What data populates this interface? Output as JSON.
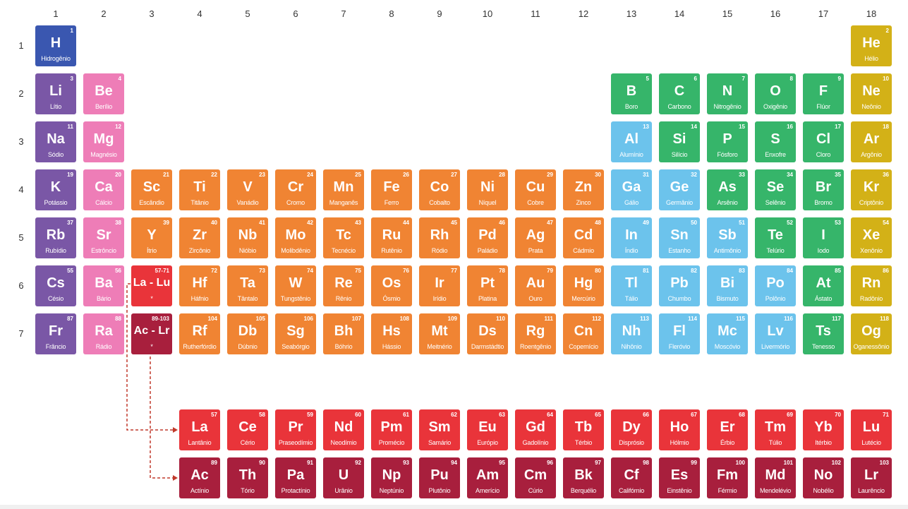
{
  "colors": {
    "hydrogen": "#3a57b0",
    "alkali": "#7a57a6",
    "alkaline": "#ee7db7",
    "transition": "#f08433",
    "post_transition": "#6cc3ec",
    "nonmetal": "#36b56a",
    "noble": "#d3b117",
    "lanthanide": "#e9343a",
    "actinide": "#a81f3d",
    "arrow": "#c0392b"
  },
  "column_labels": [
    "1",
    "2",
    "3",
    "4",
    "5",
    "6",
    "7",
    "8",
    "9",
    "10",
    "11",
    "12",
    "13",
    "14",
    "15",
    "16",
    "17",
    "18"
  ],
  "row_labels": [
    "1",
    "2",
    "3",
    "4",
    "5",
    "6",
    "7"
  ],
  "elements": [
    {
      "n": "1",
      "s": "H",
      "name": "Hidrogênio",
      "cat": "hydrogen",
      "p": 1,
      "g": 1
    },
    {
      "n": "2",
      "s": "He",
      "name": "Hélio",
      "cat": "noble",
      "p": 1,
      "g": 18
    },
    {
      "n": "3",
      "s": "Li",
      "name": "Lítio",
      "cat": "alkali",
      "p": 2,
      "g": 1
    },
    {
      "n": "4",
      "s": "Be",
      "name": "Berílio",
      "cat": "alkaline",
      "p": 2,
      "g": 2
    },
    {
      "n": "5",
      "s": "B",
      "name": "Boro",
      "cat": "nonmetal",
      "p": 2,
      "g": 13
    },
    {
      "n": "6",
      "s": "C",
      "name": "Carbono",
      "cat": "nonmetal",
      "p": 2,
      "g": 14
    },
    {
      "n": "7",
      "s": "N",
      "name": "Nitrogênio",
      "cat": "nonmetal",
      "p": 2,
      "g": 15
    },
    {
      "n": "8",
      "s": "O",
      "name": "Oxigênio",
      "cat": "nonmetal",
      "p": 2,
      "g": 16
    },
    {
      "n": "9",
      "s": "F",
      "name": "Flúor",
      "cat": "nonmetal",
      "p": 2,
      "g": 17
    },
    {
      "n": "10",
      "s": "Ne",
      "name": "Neônio",
      "cat": "noble",
      "p": 2,
      "g": 18
    },
    {
      "n": "11",
      "s": "Na",
      "name": "Sódio",
      "cat": "alkali",
      "p": 3,
      "g": 1
    },
    {
      "n": "12",
      "s": "Mg",
      "name": "Magnésio",
      "cat": "alkaline",
      "p": 3,
      "g": 2
    },
    {
      "n": "13",
      "s": "Al",
      "name": "Alumínio",
      "cat": "post_transition",
      "p": 3,
      "g": 13
    },
    {
      "n": "14",
      "s": "Si",
      "name": "Silício",
      "cat": "nonmetal",
      "p": 3,
      "g": 14
    },
    {
      "n": "15",
      "s": "P",
      "name": "Fósforo",
      "cat": "nonmetal",
      "p": 3,
      "g": 15
    },
    {
      "n": "16",
      "s": "S",
      "name": "Enxofre",
      "cat": "nonmetal",
      "p": 3,
      "g": 16
    },
    {
      "n": "17",
      "s": "Cl",
      "name": "Cloro",
      "cat": "nonmetal",
      "p": 3,
      "g": 17
    },
    {
      "n": "18",
      "s": "Ar",
      "name": "Argônio",
      "cat": "noble",
      "p": 3,
      "g": 18
    },
    {
      "n": "19",
      "s": "K",
      "name": "Potássio",
      "cat": "alkali",
      "p": 4,
      "g": 1
    },
    {
      "n": "20",
      "s": "Ca",
      "name": "Cálcio",
      "cat": "alkaline",
      "p": 4,
      "g": 2
    },
    {
      "n": "21",
      "s": "Sc",
      "name": "Escândio",
      "cat": "transition",
      "p": 4,
      "g": 3
    },
    {
      "n": "22",
      "s": "Ti",
      "name": "Titânio",
      "cat": "transition",
      "p": 4,
      "g": 4
    },
    {
      "n": "23",
      "s": "V",
      "name": "Vanádio",
      "cat": "transition",
      "p": 4,
      "g": 5
    },
    {
      "n": "24",
      "s": "Cr",
      "name": "Cromo",
      "cat": "transition",
      "p": 4,
      "g": 6
    },
    {
      "n": "25",
      "s": "Mn",
      "name": "Manganês",
      "cat": "transition",
      "p": 4,
      "g": 7
    },
    {
      "n": "26",
      "s": "Fe",
      "name": "Ferro",
      "cat": "transition",
      "p": 4,
      "g": 8
    },
    {
      "n": "27",
      "s": "Co",
      "name": "Cobalto",
      "cat": "transition",
      "p": 4,
      "g": 9
    },
    {
      "n": "28",
      "s": "Ni",
      "name": "Níquel",
      "cat": "transition",
      "p": 4,
      "g": 10
    },
    {
      "n": "29",
      "s": "Cu",
      "name": "Cobre",
      "cat": "transition",
      "p": 4,
      "g": 11
    },
    {
      "n": "30",
      "s": "Zn",
      "name": "Zinco",
      "cat": "transition",
      "p": 4,
      "g": 12
    },
    {
      "n": "31",
      "s": "Ga",
      "name": "Gálio",
      "cat": "post_transition",
      "p": 4,
      "g": 13
    },
    {
      "n": "32",
      "s": "Ge",
      "name": "Germânio",
      "cat": "post_transition",
      "p": 4,
      "g": 14
    },
    {
      "n": "33",
      "s": "As",
      "name": "Arsênio",
      "cat": "nonmetal",
      "p": 4,
      "g": 15
    },
    {
      "n": "34",
      "s": "Se",
      "name": "Selênio",
      "cat": "nonmetal",
      "p": 4,
      "g": 16
    },
    {
      "n": "35",
      "s": "Br",
      "name": "Bromo",
      "cat": "nonmetal",
      "p": 4,
      "g": 17
    },
    {
      "n": "36",
      "s": "Kr",
      "name": "Criptônio",
      "cat": "noble",
      "p": 4,
      "g": 18
    },
    {
      "n": "37",
      "s": "Rb",
      "name": "Rubídio",
      "cat": "alkali",
      "p": 5,
      "g": 1
    },
    {
      "n": "38",
      "s": "Sr",
      "name": "Estrôncio",
      "cat": "alkaline",
      "p": 5,
      "g": 2
    },
    {
      "n": "39",
      "s": "Y",
      "name": "Ítrio",
      "cat": "transition",
      "p": 5,
      "g": 3
    },
    {
      "n": "40",
      "s": "Zr",
      "name": "Zircônio",
      "cat": "transition",
      "p": 5,
      "g": 4
    },
    {
      "n": "41",
      "s": "Nb",
      "name": "Nióbio",
      "cat": "transition",
      "p": 5,
      "g": 5
    },
    {
      "n": "42",
      "s": "Mo",
      "name": "Molibdênio",
      "cat": "transition",
      "p": 5,
      "g": 6
    },
    {
      "n": "43",
      "s": "Tc",
      "name": "Tecnécio",
      "cat": "transition",
      "p": 5,
      "g": 7
    },
    {
      "n": "44",
      "s": "Ru",
      "name": "Rutênio",
      "cat": "transition",
      "p": 5,
      "g": 8
    },
    {
      "n": "45",
      "s": "Rh",
      "name": "Ródio",
      "cat": "transition",
      "p": 5,
      "g": 9
    },
    {
      "n": "46",
      "s": "Pd",
      "name": "Paládio",
      "cat": "transition",
      "p": 5,
      "g": 10
    },
    {
      "n": "47",
      "s": "Ag",
      "name": "Prata",
      "cat": "transition",
      "p": 5,
      "g": 11
    },
    {
      "n": "48",
      "s": "Cd",
      "name": "Cádmio",
      "cat": "transition",
      "p": 5,
      "g": 12
    },
    {
      "n": "49",
      "s": "In",
      "name": "Índio",
      "cat": "post_transition",
      "p": 5,
      "g": 13
    },
    {
      "n": "50",
      "s": "Sn",
      "name": "Estanho",
      "cat": "post_transition",
      "p": 5,
      "g": 14
    },
    {
      "n": "51",
      "s": "Sb",
      "name": "Antimônio",
      "cat": "post_transition",
      "p": 5,
      "g": 15
    },
    {
      "n": "52",
      "s": "Te",
      "name": "Telúrio",
      "cat": "nonmetal",
      "p": 5,
      "g": 16
    },
    {
      "n": "53",
      "s": "I",
      "name": "Iodo",
      "cat": "nonmetal",
      "p": 5,
      "g": 17
    },
    {
      "n": "54",
      "s": "Xe",
      "name": "Xenônio",
      "cat": "noble",
      "p": 5,
      "g": 18
    },
    {
      "n": "55",
      "s": "Cs",
      "name": "Césio",
      "cat": "alkali",
      "p": 6,
      "g": 1
    },
    {
      "n": "56",
      "s": "Ba",
      "name": "Bário",
      "cat": "alkaline",
      "p": 6,
      "g": 2
    },
    {
      "n": "57-71",
      "s": "La - Lu",
      "name": "*",
      "cat": "lanthanide",
      "p": 6,
      "g": 3,
      "range": true
    },
    {
      "n": "72",
      "s": "Hf",
      "name": "Háfnio",
      "cat": "transition",
      "p": 6,
      "g": 4
    },
    {
      "n": "73",
      "s": "Ta",
      "name": "Tântalo",
      "cat": "transition",
      "p": 6,
      "g": 5
    },
    {
      "n": "74",
      "s": "W",
      "name": "Tungstênio",
      "cat": "transition",
      "p": 6,
      "g": 6
    },
    {
      "n": "75",
      "s": "Re",
      "name": "Rênio",
      "cat": "transition",
      "p": 6,
      "g": 7
    },
    {
      "n": "76",
      "s": "Os",
      "name": "Ósmio",
      "cat": "transition",
      "p": 6,
      "g": 8
    },
    {
      "n": "77",
      "s": "Ir",
      "name": "Irídio",
      "cat": "transition",
      "p": 6,
      "g": 9
    },
    {
      "n": "78",
      "s": "Pt",
      "name": "Platina",
      "cat": "transition",
      "p": 6,
      "g": 10
    },
    {
      "n": "79",
      "s": "Au",
      "name": "Ouro",
      "cat": "transition",
      "p": 6,
      "g": 11
    },
    {
      "n": "80",
      "s": "Hg",
      "name": "Mercúrio",
      "cat": "transition",
      "p": 6,
      "g": 12
    },
    {
      "n": "81",
      "s": "Tl",
      "name": "Tálio",
      "cat": "post_transition",
      "p": 6,
      "g": 13
    },
    {
      "n": "82",
      "s": "Pb",
      "name": "Chumbo",
      "cat": "post_transition",
      "p": 6,
      "g": 14
    },
    {
      "n": "83",
      "s": "Bi",
      "name": "Bismuto",
      "cat": "post_transition",
      "p": 6,
      "g": 15
    },
    {
      "n": "84",
      "s": "Po",
      "name": "Polônio",
      "cat": "post_transition",
      "p": 6,
      "g": 16
    },
    {
      "n": "85",
      "s": "At",
      "name": "Ástato",
      "cat": "nonmetal",
      "p": 6,
      "g": 17
    },
    {
      "n": "86",
      "s": "Rn",
      "name": "Radônio",
      "cat": "noble",
      "p": 6,
      "g": 18
    },
    {
      "n": "87",
      "s": "Fr",
      "name": "Frâncio",
      "cat": "alkali",
      "p": 7,
      "g": 1
    },
    {
      "n": "88",
      "s": "Ra",
      "name": "Rádio",
      "cat": "alkaline",
      "p": 7,
      "g": 2
    },
    {
      "n": "89-103",
      "s": "Ac - Lr",
      "name": "*",
      "cat": "actinide",
      "p": 7,
      "g": 3,
      "range": true
    },
    {
      "n": "104",
      "s": "Rf",
      "name": "Rutherfórdio",
      "cat": "transition",
      "p": 7,
      "g": 4
    },
    {
      "n": "105",
      "s": "Db",
      "name": "Dúbnio",
      "cat": "transition",
      "p": 7,
      "g": 5
    },
    {
      "n": "106",
      "s": "Sg",
      "name": "Seabórgio",
      "cat": "transition",
      "p": 7,
      "g": 6
    },
    {
      "n": "107",
      "s": "Bh",
      "name": "Bóhrio",
      "cat": "transition",
      "p": 7,
      "g": 7
    },
    {
      "n": "108",
      "s": "Hs",
      "name": "Hássio",
      "cat": "transition",
      "p": 7,
      "g": 8
    },
    {
      "n": "109",
      "s": "Mt",
      "name": "Meitnério",
      "cat": "transition",
      "p": 7,
      "g": 9
    },
    {
      "n": "110",
      "s": "Ds",
      "name": "Darmstádtio",
      "cat": "transition",
      "p": 7,
      "g": 10
    },
    {
      "n": "111",
      "s": "Rg",
      "name": "Roentgênio",
      "cat": "transition",
      "p": 7,
      "g": 11
    },
    {
      "n": "112",
      "s": "Cn",
      "name": "Copernício",
      "cat": "transition",
      "p": 7,
      "g": 12
    },
    {
      "n": "113",
      "s": "Nh",
      "name": "Nihônio",
      "cat": "post_transition",
      "p": 7,
      "g": 13
    },
    {
      "n": "114",
      "s": "Fl",
      "name": "Fleróvio",
      "cat": "post_transition",
      "p": 7,
      "g": 14
    },
    {
      "n": "115",
      "s": "Mc",
      "name": "Moscóvio",
      "cat": "post_transition",
      "p": 7,
      "g": 15
    },
    {
      "n": "116",
      "s": "Lv",
      "name": "Livermório",
      "cat": "post_transition",
      "p": 7,
      "g": 16
    },
    {
      "n": "117",
      "s": "Ts",
      "name": "Tenesso",
      "cat": "nonmetal",
      "p": 7,
      "g": 17
    },
    {
      "n": "118",
      "s": "Og",
      "name": "Oganessônio",
      "cat": "noble",
      "p": 7,
      "g": 18
    }
  ],
  "lanthanides": [
    {
      "n": "57",
      "s": "La",
      "name": "Lantânio"
    },
    {
      "n": "58",
      "s": "Ce",
      "name": "Cério"
    },
    {
      "n": "59",
      "s": "Pr",
      "name": "Praseodímio"
    },
    {
      "n": "60",
      "s": "Nd",
      "name": "Neodímio"
    },
    {
      "n": "61",
      "s": "Pm",
      "name": "Promécio"
    },
    {
      "n": "62",
      "s": "Sm",
      "name": "Samário"
    },
    {
      "n": "63",
      "s": "Eu",
      "name": "Európio"
    },
    {
      "n": "64",
      "s": "Gd",
      "name": "Gadolínio"
    },
    {
      "n": "65",
      "s": "Tb",
      "name": "Térbio"
    },
    {
      "n": "66",
      "s": "Dy",
      "name": "Disprósio"
    },
    {
      "n": "67",
      "s": "Ho",
      "name": "Hólmio"
    },
    {
      "n": "68",
      "s": "Er",
      "name": "Érbio"
    },
    {
      "n": "69",
      "s": "Tm",
      "name": "Túlio"
    },
    {
      "n": "70",
      "s": "Yb",
      "name": "Itérbio"
    },
    {
      "n": "71",
      "s": "Lu",
      "name": "Lutécio"
    }
  ],
  "actinides": [
    {
      "n": "89",
      "s": "Ac",
      "name": "Actínio"
    },
    {
      "n": "90",
      "s": "Th",
      "name": "Tório"
    },
    {
      "n": "91",
      "s": "Pa",
      "name": "Protactínio"
    },
    {
      "n": "92",
      "s": "U",
      "name": "Urânio"
    },
    {
      "n": "93",
      "s": "Np",
      "name": "Neptúnio"
    },
    {
      "n": "94",
      "s": "Pu",
      "name": "Plutônio"
    },
    {
      "n": "95",
      "s": "Am",
      "name": "Amerício"
    },
    {
      "n": "96",
      "s": "Cm",
      "name": "Cúrio"
    },
    {
      "n": "97",
      "s": "Bk",
      "name": "Berquélio"
    },
    {
      "n": "98",
      "s": "Cf",
      "name": "Califórnio"
    },
    {
      "n": "99",
      "s": "Es",
      "name": "Einstênio"
    },
    {
      "n": "100",
      "s": "Fm",
      "name": "Férmio"
    },
    {
      "n": "101",
      "s": "Md",
      "name": "Mendelévio"
    },
    {
      "n": "102",
      "s": "No",
      "name": "Nobélio"
    },
    {
      "n": "103",
      "s": "Lr",
      "name": "Laurêncio"
    }
  ]
}
